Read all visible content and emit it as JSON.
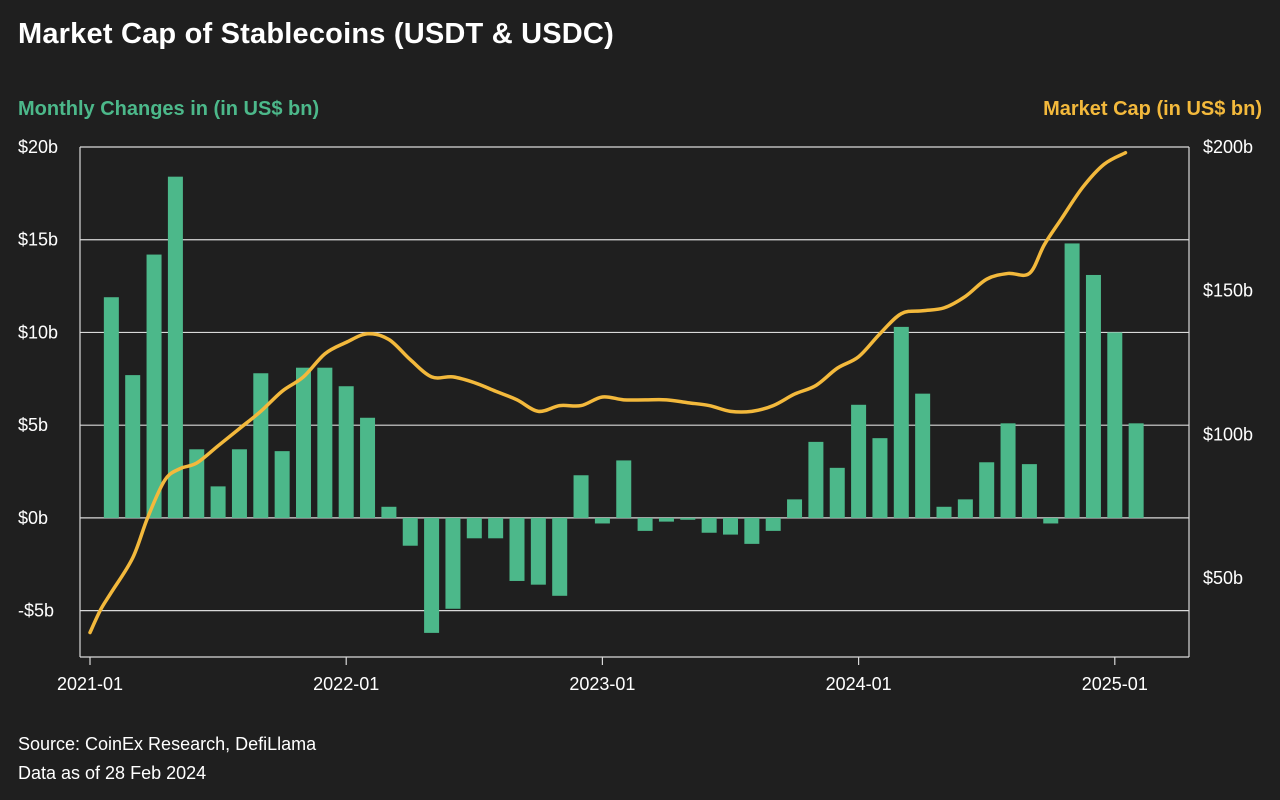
{
  "title": "Market Cap of Stablecoins (USDT & USDC)",
  "footer": {
    "source": "Source: CoinEx Research, DefiLlama",
    "date_note": "Data as of 28 Feb 2024"
  },
  "colors": {
    "background": "#1f1f1f",
    "bars": "#4cb88a",
    "line": "#f3b93c",
    "grid": "#d9d9d9"
  },
  "chart_data": {
    "type": "bar+line",
    "y_left": {
      "label": "Monthly Changes in (in US$ bn)",
      "range": [
        -7.5,
        20
      ],
      "ticks": [
        20,
        15,
        10,
        5,
        0,
        -5
      ],
      "tick_labels": [
        "$20b",
        "$15b",
        "$10b",
        "$5b",
        "$0b",
        "-$5b"
      ]
    },
    "y_right": {
      "label": "Market Cap (in US$ bn)",
      "range": [
        22.5,
        200
      ],
      "ticks": [
        200,
        150,
        100,
        50
      ],
      "tick_labels": [
        "$200b",
        "$150b",
        "$100b",
        "$50b"
      ]
    },
    "x_axis": {
      "start_month": "2021-01",
      "end_month": "2025-03",
      "tick_labels": [
        "2021-01",
        "2022-01",
        "2023-01",
        "2024-01",
        "2025-01"
      ],
      "tick_month_index": [
        0,
        12,
        24,
        36,
        48
      ]
    },
    "series": [
      {
        "name": "Monthly Changes",
        "type": "bar",
        "axis": "left",
        "start_month_index": 1,
        "values": [
          11.9,
          7.7,
          14.2,
          18.4,
          3.7,
          1.7,
          3.7,
          7.8,
          3.6,
          8.1,
          8.1,
          7.1,
          5.4,
          0.6,
          -1.5,
          -6.2,
          -4.9,
          -1.1,
          -1.1,
          -3.4,
          -3.6,
          -4.2,
          2.3,
          -0.3,
          3.1,
          -0.7,
          -0.2,
          -0.1,
          -0.8,
          -0.9,
          -1.4,
          -0.7,
          1.0,
          4.1,
          2.7,
          6.1,
          4.3,
          10.3,
          6.7,
          0.6,
          1.0,
          3.0,
          5.1,
          2.9,
          -0.3,
          14.8,
          13.1,
          10.0,
          5.1
        ]
      },
      {
        "name": "Market Cap",
        "type": "line",
        "axis": "right",
        "points": [
          [
            0,
            31
          ],
          [
            0.5,
            39
          ],
          [
            1,
            45
          ],
          [
            2,
            57
          ],
          [
            2.7,
            71
          ],
          [
            3.5,
            84
          ],
          [
            4.2,
            88
          ],
          [
            5,
            90
          ],
          [
            6,
            96
          ],
          [
            7,
            102
          ],
          [
            8,
            108
          ],
          [
            9,
            115
          ],
          [
            10,
            120
          ],
          [
            11,
            128
          ],
          [
            12,
            132
          ],
          [
            13,
            135
          ],
          [
            14,
            133
          ],
          [
            15,
            126
          ],
          [
            16,
            120
          ],
          [
            17,
            120
          ],
          [
            18,
            118
          ],
          [
            19,
            115
          ],
          [
            20,
            112
          ],
          [
            21,
            108
          ],
          [
            22,
            110
          ],
          [
            23,
            110
          ],
          [
            24,
            113
          ],
          [
            25,
            112
          ],
          [
            26,
            112
          ],
          [
            27,
            112
          ],
          [
            28,
            111
          ],
          [
            29,
            110
          ],
          [
            30,
            108
          ],
          [
            31,
            108
          ],
          [
            32,
            110
          ],
          [
            33,
            114
          ],
          [
            34,
            117
          ],
          [
            35,
            123
          ],
          [
            36,
            127
          ],
          [
            37,
            135
          ],
          [
            38,
            142
          ],
          [
            39,
            143
          ],
          [
            40,
            144
          ],
          [
            41,
            148
          ],
          [
            42,
            154
          ],
          [
            43,
            156
          ],
          [
            44,
            156
          ],
          [
            44.7,
            166
          ],
          [
            45.5,
            175
          ],
          [
            46.5,
            186
          ],
          [
            47.5,
            194
          ],
          [
            48.5,
            198
          ]
        ]
      }
    ]
  }
}
